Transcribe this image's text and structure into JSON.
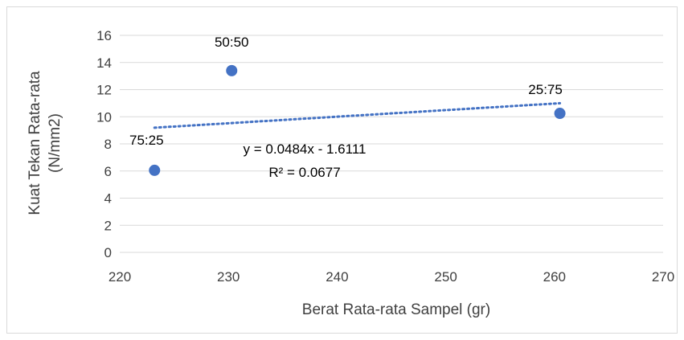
{
  "chart_data": {
    "type": "scatter",
    "xlabel": "Berat Rata-rata Sampel (gr)",
    "ylabel": [
      "Kuat Tekan Rata-rata",
      "(N/mm2)"
    ],
    "xlim": [
      220,
      270
    ],
    "ylim": [
      0,
      16
    ],
    "x_ticks": [
      "220",
      "230",
      "240",
      "250",
      "260",
      "270"
    ],
    "y_ticks": [
      "0",
      "2",
      "4",
      "6",
      "8",
      "10",
      "12",
      "14",
      "16"
    ],
    "grid": "horizontal",
    "points": [
      {
        "x": 223.2,
        "y": 6.05,
        "label": "75:25"
      },
      {
        "x": 230.3,
        "y": 13.4,
        "label": "50:50"
      },
      {
        "x": 260.5,
        "y": 10.25,
        "label": "25:75"
      }
    ],
    "trendline": {
      "type": "linear",
      "slope": 0.0484,
      "intercept": -1.6111,
      "equation": "y = 0.0484x - 1.6111",
      "r_squared": "R² = 0.0677"
    },
    "colors": {
      "marker": "#4472c4",
      "trendline": "#4472c4",
      "grid": "#d9d9d9",
      "text": "#404040"
    }
  }
}
